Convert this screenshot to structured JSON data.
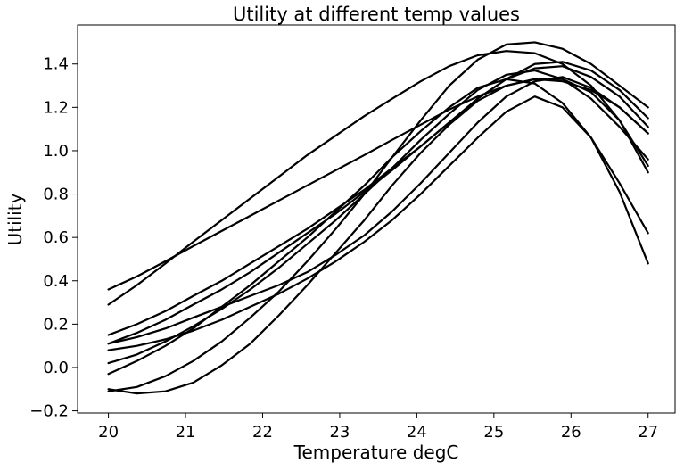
{
  "chart_data": {
    "type": "line",
    "title": "Utility at different temp values",
    "xlabel": "Temperature degC",
    "ylabel": "Utility",
    "xlim": [
      19.6,
      27.35
    ],
    "ylim": [
      -0.21,
      1.58
    ],
    "xticks": [
      20,
      21,
      22,
      23,
      24,
      25,
      26,
      27
    ],
    "xtick_labels": [
      "20",
      "21",
      "22",
      "23",
      "24",
      "25",
      "26",
      "27"
    ],
    "yticks": [
      -0.2,
      0.0,
      0.2,
      0.4,
      0.6,
      0.8,
      1.0,
      1.2,
      1.4
    ],
    "ytick_labels": [
      "−0.2",
      "0.0",
      "0.2",
      "0.4",
      "0.6",
      "0.8",
      "1.0",
      "1.2",
      "1.4"
    ],
    "grid": false,
    "legend": false,
    "line_color": "#000000",
    "x": [
      20.0,
      20.37,
      20.74,
      21.1,
      21.47,
      21.84,
      22.21,
      22.58,
      22.95,
      23.32,
      23.68,
      24.05,
      24.42,
      24.79,
      25.16,
      25.53,
      25.89,
      26.26,
      26.63,
      27.0
    ],
    "series": [
      {
        "values": [
          0.29,
          0.38,
          0.48,
          0.58,
          0.68,
          0.78,
          0.88,
          0.98,
          1.07,
          1.16,
          1.24,
          1.32,
          1.39,
          1.44,
          1.46,
          1.45,
          1.4,
          1.3,
          1.14,
          0.9
        ]
      },
      {
        "values": [
          0.36,
          0.42,
          0.49,
          0.56,
          0.63,
          0.7,
          0.77,
          0.84,
          0.91,
          0.98,
          1.05,
          1.12,
          1.19,
          1.25,
          1.3,
          1.33,
          1.33,
          1.27,
          1.14,
          0.93
        ]
      },
      {
        "values": [
          0.15,
          0.2,
          0.26,
          0.33,
          0.4,
          0.48,
          0.56,
          0.64,
          0.73,
          0.82,
          0.92,
          1.02,
          1.13,
          1.24,
          1.33,
          1.4,
          1.41,
          1.37,
          1.28,
          1.15
        ]
      },
      {
        "values": [
          0.11,
          0.16,
          0.22,
          0.29,
          0.36,
          0.44,
          0.53,
          0.62,
          0.71,
          0.81,
          0.91,
          1.02,
          1.13,
          1.24,
          1.33,
          1.38,
          1.39,
          1.34,
          1.25,
          1.11
        ]
      },
      {
        "values": [
          0.11,
          0.14,
          0.18,
          0.23,
          0.28,
          0.33,
          0.38,
          0.44,
          0.52,
          0.61,
          0.72,
          0.85,
          0.99,
          1.13,
          1.25,
          1.32,
          1.34,
          1.29,
          1.2,
          1.08
        ]
      },
      {
        "values": [
          0.02,
          0.06,
          0.12,
          0.19,
          0.27,
          0.36,
          0.46,
          0.57,
          0.68,
          0.8,
          0.92,
          1.05,
          1.17,
          1.28,
          1.35,
          1.37,
          1.33,
          1.24,
          1.11,
          0.96
        ]
      },
      {
        "values": [
          -0.03,
          0.03,
          0.1,
          0.18,
          0.28,
          0.38,
          0.49,
          0.6,
          0.72,
          0.84,
          0.97,
          1.09,
          1.2,
          1.29,
          1.33,
          1.31,
          1.22,
          1.06,
          0.85,
          0.62
        ]
      },
      {
        "values": [
          -0.1,
          -0.12,
          -0.11,
          -0.07,
          0.01,
          0.11,
          0.24,
          0.38,
          0.53,
          0.68,
          0.84,
          0.99,
          1.12,
          1.23,
          1.3,
          1.33,
          1.32,
          1.28,
          1.2,
          1.08
        ]
      },
      {
        "values": [
          -0.11,
          -0.09,
          -0.04,
          0.03,
          0.12,
          0.23,
          0.35,
          0.49,
          0.64,
          0.8,
          0.97,
          1.14,
          1.3,
          1.42,
          1.49,
          1.5,
          1.47,
          1.4,
          1.3,
          1.2
        ]
      },
      {
        "values": [
          0.08,
          0.1,
          0.13,
          0.17,
          0.22,
          0.28,
          0.34,
          0.41,
          0.49,
          0.58,
          0.68,
          0.8,
          0.93,
          1.06,
          1.18,
          1.25,
          1.2,
          1.06,
          0.81,
          0.48
        ]
      }
    ]
  }
}
